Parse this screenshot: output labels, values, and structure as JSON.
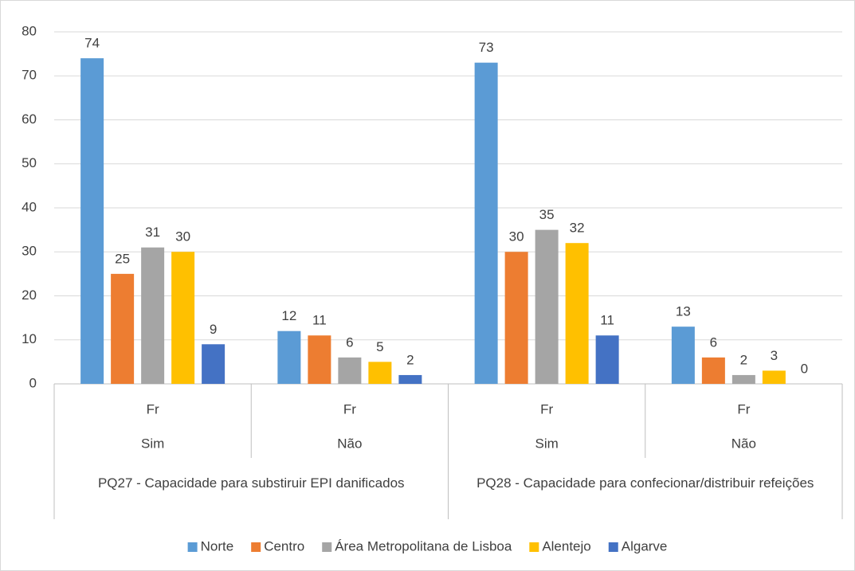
{
  "chart_data": {
    "type": "bar",
    "categories": [
      "Fr",
      "Fr",
      "Fr",
      "Fr"
    ],
    "groups": [
      {
        "name": "PQ27 - Capacidade para substiruir EPI danificados",
        "subgroups": [
          "Sim",
          "Não"
        ]
      },
      {
        "name": "PQ28 - Capacidade para confecionar/distribuir refeições",
        "subgroups": [
          "Sim",
          "Não"
        ]
      }
    ],
    "series": [
      {
        "name": "Norte",
        "color": "#5b9bd5",
        "values": [
          74,
          12,
          73,
          13
        ]
      },
      {
        "name": "Centro",
        "color": "#ed7d31",
        "values": [
          25,
          11,
          30,
          6
        ]
      },
      {
        "name": "Área Metropolitana de Lisboa",
        "color": "#a5a5a5",
        "values": [
          31,
          6,
          35,
          2
        ]
      },
      {
        "name": "Alentejo",
        "color": "#ffc000",
        "values": [
          30,
          5,
          32,
          3
        ]
      },
      {
        "name": "Algarve",
        "color": "#4472c4",
        "values": [
          9,
          2,
          11,
          0
        ]
      }
    ],
    "ylim": [
      0,
      80
    ],
    "yticks": [
      0,
      10,
      20,
      30,
      40,
      50,
      60,
      70,
      80
    ],
    "grid": true,
    "legend": "bottom",
    "data_labels": true
  }
}
